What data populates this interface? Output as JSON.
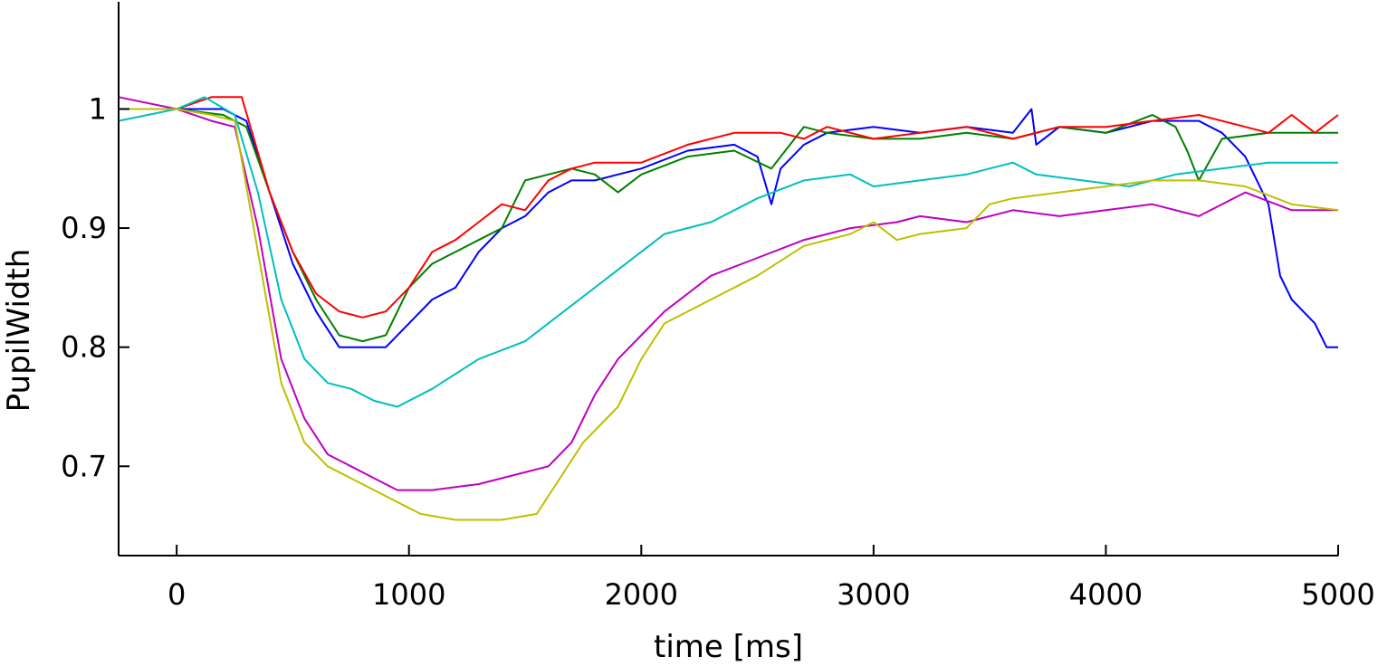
{
  "chart_data": {
    "type": "line",
    "xlabel": "time [ms]",
    "ylabel": "PupilWidth",
    "xlim": [
      -250,
      5000
    ],
    "ylim": [
      0.625,
      1.09
    ],
    "xticks": [
      0,
      1000,
      2000,
      3000,
      4000,
      5000
    ],
    "yticks": [
      0.7,
      0.8,
      0.9,
      1
    ],
    "xtick_labels": [
      "0",
      "1000",
      "2000",
      "3000",
      "4000",
      "5000"
    ],
    "ytick_labels": [
      "0.7",
      "0.8",
      "0.9",
      "1"
    ],
    "grid": false,
    "series": [
      {
        "color": "#0000ff",
        "x": [
          -250,
          0,
          200,
          300,
          400,
          500,
          600,
          700,
          800,
          900,
          1000,
          1100,
          1200,
          1300,
          1400,
          1500,
          1600,
          1700,
          1800,
          1900,
          2000,
          2200,
          2400,
          2500,
          2560,
          2600,
          2700,
          2800,
          3000,
          3200,
          3400,
          3600,
          3680,
          3700,
          3800,
          4000,
          4200,
          4400,
          4500,
          4600,
          4700,
          4750,
          4800,
          4900,
          4950,
          5000
        ],
        "y": [
          1.0,
          1.0,
          1.0,
          0.99,
          0.93,
          0.87,
          0.83,
          0.8,
          0.8,
          0.8,
          0.82,
          0.84,
          0.85,
          0.88,
          0.9,
          0.91,
          0.93,
          0.94,
          0.94,
          0.945,
          0.95,
          0.965,
          0.97,
          0.96,
          0.92,
          0.95,
          0.97,
          0.98,
          0.985,
          0.98,
          0.985,
          0.98,
          1.0,
          0.97,
          0.985,
          0.98,
          0.99,
          0.99,
          0.98,
          0.96,
          0.92,
          0.86,
          0.84,
          0.82,
          0.8,
          0.8
        ]
      },
      {
        "color": "#008000",
        "x": [
          -250,
          0,
          200,
          300,
          400,
          500,
          600,
          700,
          800,
          900,
          1000,
          1100,
          1200,
          1300,
          1400,
          1500,
          1600,
          1700,
          1800,
          1900,
          2000,
          2200,
          2400,
          2560,
          2600,
          2700,
          2800,
          3000,
          3200,
          3400,
          3600,
          3800,
          4000,
          4200,
          4300,
          4350,
          4400,
          4500,
          4700,
          5000
        ],
        "y": [
          1.0,
          1.0,
          0.995,
          0.985,
          0.93,
          0.88,
          0.84,
          0.81,
          0.805,
          0.81,
          0.85,
          0.87,
          0.88,
          0.89,
          0.9,
          0.94,
          0.945,
          0.95,
          0.945,
          0.93,
          0.945,
          0.96,
          0.965,
          0.95,
          0.96,
          0.985,
          0.98,
          0.975,
          0.975,
          0.98,
          0.975,
          0.985,
          0.98,
          0.995,
          0.985,
          0.965,
          0.94,
          0.975,
          0.98,
          0.98
        ]
      },
      {
        "color": "#ff0000",
        "x": [
          -250,
          0,
          150,
          280,
          400,
          500,
          600,
          700,
          800,
          900,
          1000,
          1100,
          1200,
          1300,
          1400,
          1500,
          1600,
          1700,
          1800,
          1900,
          2000,
          2200,
          2400,
          2600,
          2700,
          2800,
          3000,
          3200,
          3400,
          3600,
          3800,
          4000,
          4200,
          4400,
          4600,
          4700,
          4800,
          4900,
          5000
        ],
        "y": [
          1.0,
          1.0,
          1.01,
          1.01,
          0.93,
          0.88,
          0.845,
          0.83,
          0.825,
          0.83,
          0.85,
          0.88,
          0.89,
          0.905,
          0.92,
          0.915,
          0.94,
          0.95,
          0.955,
          0.955,
          0.955,
          0.97,
          0.98,
          0.98,
          0.975,
          0.985,
          0.975,
          0.98,
          0.985,
          0.975,
          0.985,
          0.985,
          0.99,
          0.995,
          0.985,
          0.98,
          0.995,
          0.98,
          0.995
        ]
      },
      {
        "color": "#00bfbf",
        "x": [
          -250,
          0,
          120,
          250,
          350,
          450,
          550,
          650,
          750,
          850,
          950,
          1100,
          1300,
          1500,
          1700,
          1900,
          2100,
          2300,
          2500,
          2700,
          2900,
          3000,
          3200,
          3400,
          3600,
          3700,
          3900,
          4100,
          4300,
          4500,
          4700,
          5000
        ],
        "y": [
          0.99,
          1.0,
          1.01,
          0.995,
          0.93,
          0.84,
          0.79,
          0.77,
          0.765,
          0.755,
          0.75,
          0.765,
          0.79,
          0.805,
          0.835,
          0.865,
          0.895,
          0.905,
          0.925,
          0.94,
          0.945,
          0.935,
          0.94,
          0.945,
          0.955,
          0.945,
          0.94,
          0.935,
          0.945,
          0.95,
          0.955,
          0.955
        ]
      },
      {
        "color": "#bf00bf",
        "x": [
          -250,
          0,
          150,
          250,
          350,
          450,
          550,
          650,
          750,
          850,
          950,
          1100,
          1300,
          1500,
          1600,
          1700,
          1800,
          1900,
          2000,
          2100,
          2300,
          2500,
          2700,
          2900,
          3100,
          3200,
          3400,
          3600,
          3800,
          4000,
          4200,
          4400,
          4600,
          4800,
          5000
        ],
        "y": [
          1.01,
          1.0,
          0.99,
          0.985,
          0.9,
          0.79,
          0.74,
          0.71,
          0.7,
          0.69,
          0.68,
          0.68,
          0.685,
          0.695,
          0.7,
          0.72,
          0.76,
          0.79,
          0.81,
          0.83,
          0.86,
          0.875,
          0.89,
          0.9,
          0.905,
          0.91,
          0.905,
          0.915,
          0.91,
          0.915,
          0.92,
          0.91,
          0.93,
          0.915,
          0.915
        ]
      },
      {
        "color": "#bfbf00",
        "x": [
          -250,
          0,
          150,
          250,
          350,
          450,
          550,
          650,
          750,
          850,
          950,
          1050,
          1200,
          1400,
          1550,
          1650,
          1750,
          1900,
          2000,
          2100,
          2300,
          2500,
          2700,
          2900,
          3000,
          3100,
          3200,
          3400,
          3500,
          3600,
          3800,
          4000,
          4200,
          4400,
          4600,
          4800,
          5000
        ],
        "y": [
          1.0,
          1.0,
          0.995,
          0.99,
          0.88,
          0.77,
          0.72,
          0.7,
          0.69,
          0.68,
          0.67,
          0.66,
          0.655,
          0.655,
          0.66,
          0.69,
          0.72,
          0.75,
          0.79,
          0.82,
          0.84,
          0.86,
          0.885,
          0.895,
          0.905,
          0.89,
          0.895,
          0.9,
          0.92,
          0.925,
          0.93,
          0.935,
          0.94,
          0.94,
          0.935,
          0.92,
          0.915
        ]
      }
    ]
  }
}
